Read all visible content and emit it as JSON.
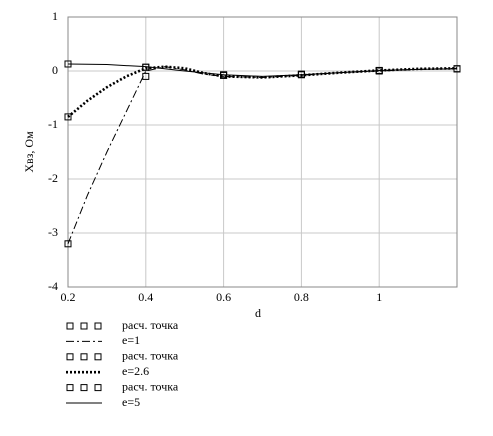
{
  "chart_data": {
    "type": "line",
    "xlabel": "d",
    "ylabel": "Хвз, Ом",
    "xlim": [
      0.2,
      1.2
    ],
    "xticks": [
      0.2,
      0.4,
      0.6,
      0.8,
      1
    ],
    "ylim": [
      -4,
      1
    ],
    "yticks": [
      1,
      0,
      -1,
      -2,
      -3,
      -4
    ],
    "grid": true,
    "legend": "bottom-left",
    "series": [
      {
        "name": "расч. точка",
        "style": "markers",
        "color": "#000000",
        "x": [
          0.2,
          0.4,
          0.6,
          0.8,
          1,
          1.2
        ],
        "values": [
          -3.2,
          -0.1,
          -0.08,
          -0.07,
          0.0,
          0.04
        ]
      },
      {
        "name": "e=1",
        "style": "dashdot",
        "color": "#000000",
        "x": [
          0.2,
          0.25,
          0.3,
          0.35,
          0.4,
          0.45,
          0.5,
          0.55,
          0.6,
          0.7,
          0.8,
          0.9,
          1,
          1.1,
          1.2
        ],
        "values": [
          -3.2,
          -2.3,
          -1.5,
          -0.75,
          0.0,
          0.08,
          0.02,
          -0.06,
          -0.1,
          -0.12,
          -0.08,
          -0.03,
          0.0,
          0.03,
          0.05
        ]
      },
      {
        "name": "расч. точка",
        "style": "markers",
        "color": "#000000",
        "x": [
          0.2,
          0.4,
          0.6,
          0.8,
          1,
          1.2
        ],
        "values": [
          -0.85,
          0.07,
          -0.08,
          -0.06,
          0.01,
          0.04
        ]
      },
      {
        "name": "e=2.6",
        "style": "dotted",
        "color": "#000000",
        "x": [
          0.2,
          0.25,
          0.3,
          0.35,
          0.4,
          0.45,
          0.5,
          0.55,
          0.6,
          0.7,
          0.8,
          0.9,
          1,
          1.1,
          1.2
        ],
        "values": [
          -0.85,
          -0.55,
          -0.3,
          -0.1,
          0.05,
          0.08,
          0.05,
          -0.04,
          -0.1,
          -0.12,
          -0.08,
          -0.03,
          0.01,
          0.04,
          0.05
        ]
      },
      {
        "name": "расч. точка",
        "style": "markers",
        "color": "#000000",
        "x": [
          0.2,
          0.4,
          0.6,
          0.8,
          1,
          1.2
        ],
        "values": [
          0.13,
          0.07,
          -0.07,
          -0.06,
          0.01,
          0.04
        ]
      },
      {
        "name": "e=5",
        "style": "solid",
        "color": "#000000",
        "x": [
          0.2,
          0.3,
          0.4,
          0.5,
          0.6,
          0.7,
          0.8,
          0.9,
          1,
          1.1,
          1.2
        ],
        "values": [
          0.13,
          0.12,
          0.08,
          0.0,
          -0.07,
          -0.1,
          -0.07,
          -0.03,
          0.01,
          0.03,
          0.04
        ]
      }
    ]
  }
}
